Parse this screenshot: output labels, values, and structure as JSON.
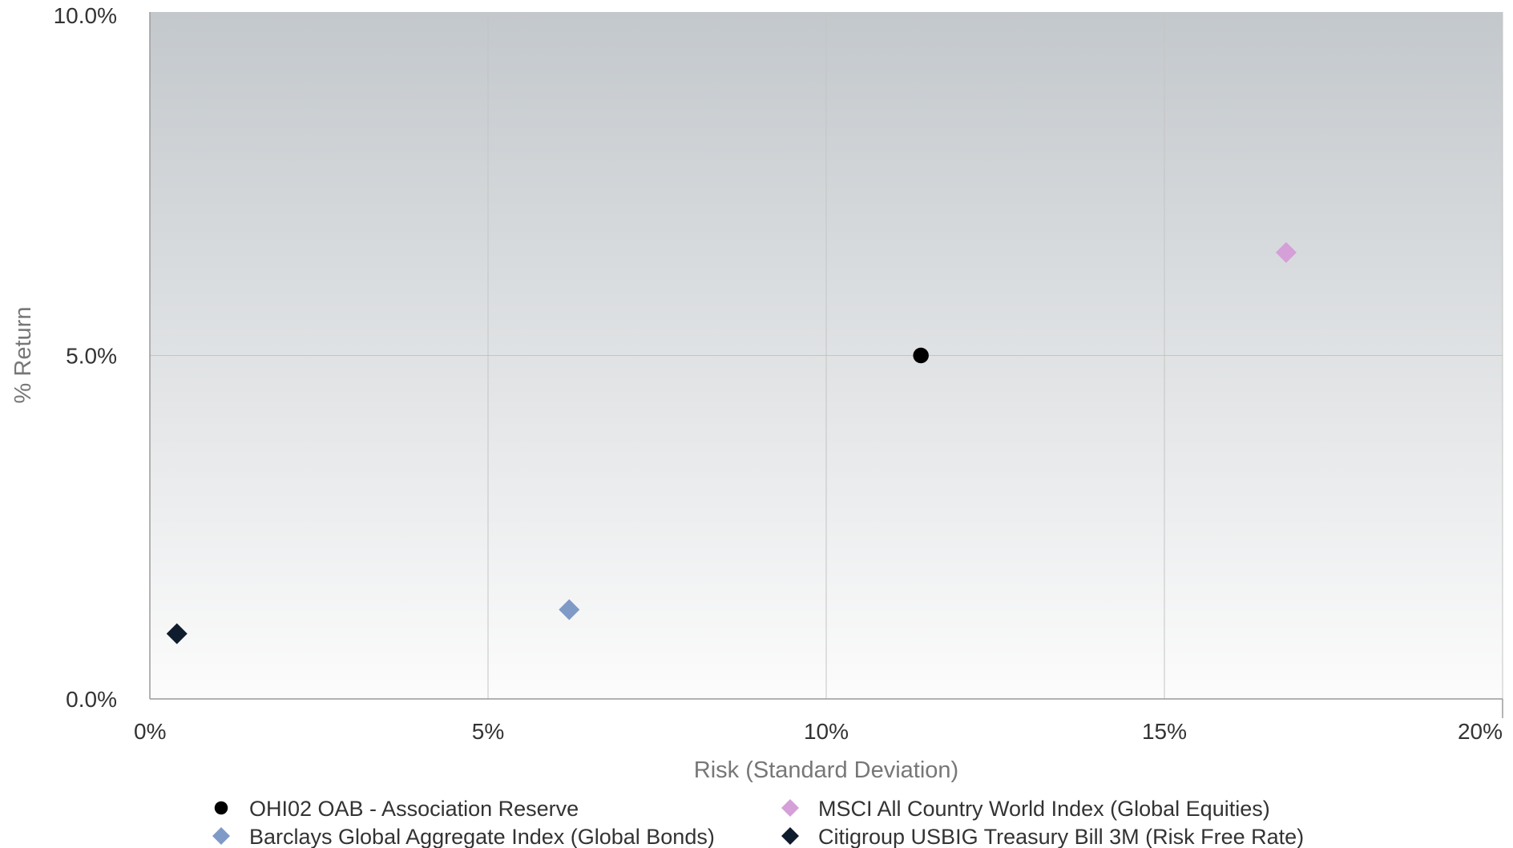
{
  "chart_data": {
    "type": "scatter",
    "title": "",
    "xlabel": "Risk (Standard Deviation)",
    "ylabel": "% Return",
    "xlim": [
      0,
      20
    ],
    "ylim": [
      0,
      10
    ],
    "x_ticks": [
      0,
      5,
      10,
      15,
      20
    ],
    "x_tick_labels": [
      "0%",
      "5%",
      "10%",
      "15%",
      "20%"
    ],
    "y_ticks": [
      0,
      5,
      10
    ],
    "y_tick_labels": [
      "0.0%",
      "5.0%",
      "10.0%"
    ],
    "grid": true,
    "legend_position": "bottom",
    "series": [
      {
        "name": "OHI02 OAB - Association Reserve",
        "marker": "circle",
        "color": "#000000",
        "x": 11.4,
        "y": 5.0
      },
      {
        "name": "MSCI All Country World Index (Global Equities)",
        "marker": "diamond",
        "color": "#d59fd8",
        "x": 16.8,
        "y": 6.5
      },
      {
        "name": "Barclays Global Aggregate Index (Global Bonds)",
        "marker": "diamond",
        "color": "#7f9ac6",
        "x": 6.2,
        "y": 1.3
      },
      {
        "name": "Citigroup USBIG Treasury Bill 3M (Risk Free Rate)",
        "marker": "diamond",
        "color": "#0f1c2e",
        "x": 0.4,
        "y": 0.95
      }
    ]
  }
}
